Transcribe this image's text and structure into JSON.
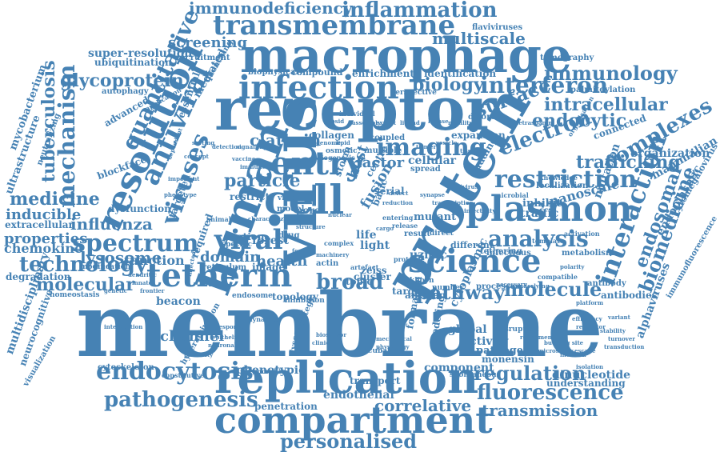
{
  "cloud": {
    "color": "#4682b4",
    "words": [
      "membrane",
      "virus",
      "protein",
      "receptor",
      "macrophage",
      "human",
      "cell",
      "replication",
      "compartment",
      "plasmon",
      "entry",
      "tetherin",
      "science",
      "resolution",
      "antiviral",
      "infection",
      "transmembrane",
      "viral",
      "viruses",
      "spectrum",
      "endocytosis",
      "imaging",
      "interaction",
      "analysis",
      "pathogenesis",
      "restriction",
      "fluorescence",
      "technology",
      "mechanism",
      "quantitative",
      "interferon",
      "immunology",
      "electron",
      "molecular",
      "pathway",
      "molecule",
      "regulation",
      "biomedicine",
      "complexes",
      "personalised",
      "trafficking",
      "intracellular",
      "surface",
      "endocytic",
      "glycoprotein",
      "lysosome",
      "broad",
      "inflammation",
      "immunodeficiency",
      "transmission",
      "correlative",
      "medicine",
      "tuberculosis",
      "endosomal",
      "multiscale",
      "screening",
      "biology",
      "influenza",
      "inducible",
      "properties",
      "chemokine",
      "function",
      "domain",
      "health",
      "particle",
      "clathrin",
      "factor",
      "fusion",
      "host",
      "super-resolution",
      "ubiquitination",
      "channel",
      "mycobacterium",
      "ultrastructure",
      "degradation",
      "multidisciplinary",
      "neurocognitive",
      "extracellular",
      "nanoscale",
      "mutation",
      "mammalian",
      "endoplasmic",
      "alphaviruses",
      "cytomegalovirus",
      "immunofluorescence",
      "organization",
      "tomography",
      "palmitoylation",
      "flaviviruses",
      "enrichment",
      "identification",
      "biophysical",
      "dinucleotide",
      "understanding",
      "global",
      "activity",
      "pathogen",
      "monensin",
      "component",
      "phenotypic",
      "penetration",
      "endothelial",
      "transport",
      "beacon",
      "cytoskeleton",
      "required",
      "restrict",
      "targeted",
      "dysfunction",
      "blockface",
      "advanced",
      "collagen",
      "expansion",
      "budding",
      "inhibit",
      "localization",
      "mutant",
      "different",
      "uzmic",
      "zeiss",
      "life",
      "light",
      "forest",
      "cellular",
      "connected",
      "cytoplasmic",
      "formation",
      "antigen",
      "target",
      "cluster",
      "serial",
      "topic",
      "compound",
      "recruitment",
      "quenching",
      "mediated",
      "essential",
      "autophagy",
      "fixation",
      "modification",
      "homeostasis",
      "visualization",
      "neutralizing",
      "traffic",
      "infectious",
      "metabolism",
      "antibodies",
      "antibody",
      "processes",
      "number",
      "khoyn",
      "spread",
      "coupled",
      "multiple",
      "model",
      "pore",
      "image",
      "actin",
      "drug",
      "dynamic",
      "reticulum",
      "hyperactivation",
      "constitutive",
      "polymorphic",
      "spontaneous",
      "disorder",
      "tethering",
      "perspective",
      "individual",
      "disruption",
      "inhibition",
      "endosome",
      "topology",
      "artefact",
      "animal",
      "probe",
      "virion",
      "strategy",
      "lysosomal",
      "modeling",
      "incubation",
      "centre",
      "storm",
      "osmotic",
      "biogenesis",
      "basic",
      "result",
      "direct",
      "entering",
      "release",
      "protease",
      "specific",
      "application",
      "characterization",
      "complex",
      "machinery",
      "feature",
      "structure",
      "nuclear",
      "defect",
      "reduction",
      "knowledge",
      "template",
      "compatible",
      "necessary",
      "underlying",
      "refinement",
      "microbial",
      "organisation",
      "tetraspanin",
      "phenotype",
      "dependent",
      "important",
      "concept",
      "sorting",
      "infected",
      "detection",
      "signalling",
      "vaccine",
      "immune",
      "genome",
      "lipid",
      "capsid",
      "assembly",
      "export",
      "ligand",
      "kinase",
      "motility",
      "trimer",
      "vesicle",
      "tissue",
      "cargo",
      "lentivirus",
      "transcription",
      "infectivity",
      "synapse",
      "dendritic",
      "genetic",
      "innate",
      "frontier",
      "intervention",
      "response",
      "epithelial",
      "neuronal",
      "clinical",
      "biosensor",
      "mechanical",
      "physiology",
      "plasticity",
      "microscopy",
      "budding site",
      "invasion",
      "escape",
      "transduction",
      "isolation",
      "stability",
      "turnover",
      "variant",
      "efficiency",
      "regulator",
      "activation",
      "polarity",
      "platform"
    ]
  }
}
